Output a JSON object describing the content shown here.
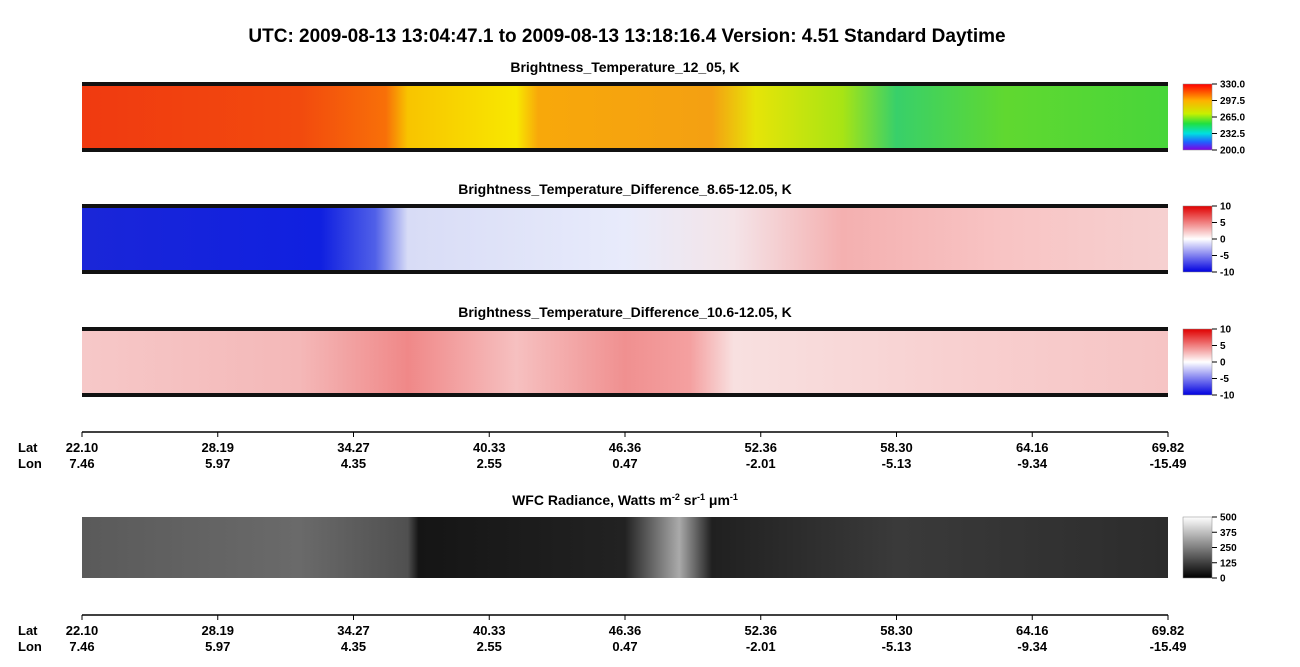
{
  "title": "UTC:  2009-08-13   13:04:47.1  to  2009-08-13   13:18:16.4   Version: 4.51  Standard Daytime",
  "panels": [
    {
      "title": "Brightness_Temperature_12_05, K",
      "colorbar": [
        "330.0",
        "297.5",
        "265.0",
        "232.5",
        "200.0"
      ]
    },
    {
      "title": "Brightness_Temperature_Difference_8.65-12.05, K",
      "colorbar": [
        "10",
        "5",
        "0",
        "-5",
        "-10"
      ]
    },
    {
      "title": "Brightness_Temperature_Difference_10.6-12.05, K",
      "colorbar": [
        "10",
        "5",
        "0",
        "-5",
        "-10"
      ]
    },
    {
      "title_parts": [
        "WFC Radiance, Watts m",
        "-2",
        " sr",
        "-1",
        " μm",
        "-1"
      ],
      "colorbar": [
        "500",
        "375",
        "250",
        "125",
        "0"
      ]
    }
  ],
  "axis": {
    "lat_label": "Lat",
    "lon_label": "Lon",
    "lat": [
      "22.10",
      "28.19",
      "34.27",
      "40.33",
      "46.36",
      "52.36",
      "58.30",
      "64.16",
      "69.82"
    ],
    "lon": [
      "7.46",
      "5.97",
      "4.35",
      "2.55",
      "0.47",
      "-2.01",
      "-5.13",
      "-9.34",
      "-15.49"
    ]
  }
}
